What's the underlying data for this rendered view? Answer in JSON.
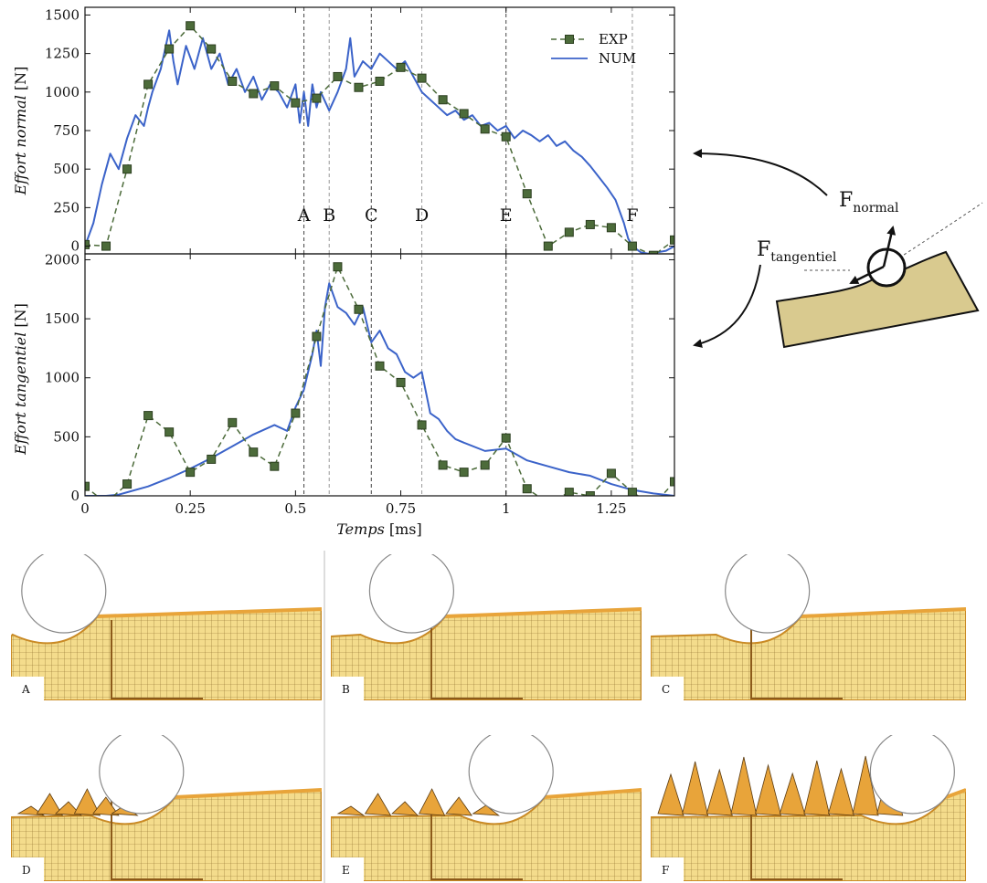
{
  "chart_data": [
    {
      "type": "line",
      "xlabel": "Temps",
      "xunit": "[ms]",
      "ylabel": "Effort normal",
      "yunit": "[N]",
      "xlim": [
        0,
        1.4
      ],
      "ylim": [
        -50,
        1550
      ],
      "xticks": [
        0,
        0.25,
        0.5,
        0.75,
        1,
        1.25
      ],
      "xtick_labels": [
        "0",
        "0.25",
        "0.5",
        "0.75",
        "1",
        "1.25"
      ],
      "yticks": [
        0,
        250,
        500,
        750,
        1000,
        1250,
        1500
      ],
      "ytick_labels": [
        "0",
        "250",
        "500",
        "750",
        "1000",
        "1250",
        "1500"
      ],
      "legend_position": "top-right",
      "grid": false,
      "markers": [
        {
          "label": "A",
          "x": 0.52
        },
        {
          "label": "B",
          "x": 0.58
        },
        {
          "label": "C",
          "x": 0.68
        },
        {
          "label": "D",
          "x": 0.8
        },
        {
          "label": "E",
          "x": 1.0
        },
        {
          "label": "F",
          "x": 1.3
        }
      ],
      "series": [
        {
          "name": "EXP",
          "style": "dashed-square",
          "x": [
            0,
            0.05,
            0.1,
            0.15,
            0.2,
            0.25,
            0.3,
            0.35,
            0.4,
            0.45,
            0.5,
            0.55,
            0.6,
            0.65,
            0.7,
            0.75,
            0.8,
            0.85,
            0.9,
            0.95,
            1.0,
            1.05,
            1.1,
            1.15,
            1.2,
            1.25,
            1.3,
            1.35,
            1.4
          ],
          "y": [
            10,
            0,
            500,
            1050,
            1280,
            1430,
            1280,
            1070,
            990,
            1040,
            930,
            960,
            1100,
            1030,
            1070,
            1160,
            1090,
            950,
            860,
            760,
            710,
            340,
            0,
            90,
            140,
            120,
            0,
            -60,
            40
          ]
        },
        {
          "name": "NUM",
          "style": "solid",
          "x": [
            0,
            0.02,
            0.04,
            0.06,
            0.08,
            0.1,
            0.12,
            0.14,
            0.15,
            0.16,
            0.18,
            0.2,
            0.21,
            0.22,
            0.24,
            0.26,
            0.28,
            0.3,
            0.32,
            0.34,
            0.36,
            0.38,
            0.4,
            0.42,
            0.44,
            0.46,
            0.48,
            0.5,
            0.51,
            0.52,
            0.53,
            0.54,
            0.55,
            0.56,
            0.58,
            0.6,
            0.62,
            0.63,
            0.64,
            0.66,
            0.68,
            0.7,
            0.72,
            0.74,
            0.76,
            0.78,
            0.8,
            0.82,
            0.84,
            0.86,
            0.88,
            0.9,
            0.92,
            0.94,
            0.96,
            0.98,
            1.0,
            1.02,
            1.04,
            1.06,
            1.08,
            1.1,
            1.12,
            1.14,
            1.16,
            1.18,
            1.2,
            1.22,
            1.24,
            1.26,
            1.28,
            1.29,
            1.3,
            1.32,
            1.34,
            1.36,
            1.38,
            1.4
          ],
          "y": [
            0,
            150,
            400,
            600,
            500,
            700,
            850,
            780,
            900,
            1000,
            1150,
            1400,
            1200,
            1050,
            1300,
            1150,
            1350,
            1150,
            1250,
            1050,
            1150,
            1000,
            1100,
            950,
            1050,
            1000,
            900,
            1050,
            800,
            1000,
            780,
            1050,
            900,
            1000,
            880,
            1000,
            1150,
            1350,
            1100,
            1200,
            1150,
            1250,
            1200,
            1150,
            1200,
            1100,
            1000,
            950,
            900,
            850,
            880,
            820,
            850,
            780,
            800,
            750,
            780,
            700,
            750,
            720,
            680,
            720,
            650,
            680,
            620,
            580,
            520,
            450,
            380,
            300,
            150,
            50,
            0,
            -40,
            -50,
            -40,
            -30,
            0
          ]
        }
      ]
    },
    {
      "type": "line",
      "xlabel": "Temps",
      "xunit": "[ms]",
      "ylabel": "Effort tangentiel",
      "yunit": "[N]",
      "xlim": [
        0,
        1.4
      ],
      "ylim": [
        0,
        2050
      ],
      "xticks": [
        0,
        0.25,
        0.5,
        0.75,
        1,
        1.25
      ],
      "xtick_labels": [
        "0",
        "0.25",
        "0.5",
        "0.75",
        "1",
        "1.25"
      ],
      "yticks": [
        0,
        500,
        1000,
        1500,
        2000
      ],
      "ytick_labels": [
        "0",
        "500",
        "1000",
        "1500",
        "2000"
      ],
      "grid": false,
      "series": [
        {
          "name": "EXP",
          "style": "dashed-square",
          "x": [
            0,
            0.05,
            0.1,
            0.15,
            0.2,
            0.25,
            0.3,
            0.35,
            0.4,
            0.45,
            0.5,
            0.55,
            0.6,
            0.65,
            0.7,
            0.75,
            0.8,
            0.85,
            0.9,
            0.95,
            1.0,
            1.05,
            1.1,
            1.15,
            1.2,
            1.25,
            1.3,
            1.35,
            1.4
          ],
          "y": [
            80,
            -60,
            100,
            680,
            540,
            200,
            310,
            620,
            370,
            250,
            700,
            1350,
            1940,
            1580,
            1100,
            960,
            600,
            260,
            200,
            260,
            490,
            60,
            -60,
            30,
            0,
            190,
            30,
            -80,
            120
          ]
        },
        {
          "name": "NUM",
          "style": "solid",
          "x": [
            0,
            0.05,
            0.08,
            0.1,
            0.15,
            0.2,
            0.25,
            0.3,
            0.35,
            0.4,
            0.45,
            0.48,
            0.5,
            0.52,
            0.54,
            0.55,
            0.56,
            0.57,
            0.58,
            0.6,
            0.62,
            0.64,
            0.66,
            0.68,
            0.7,
            0.72,
            0.74,
            0.76,
            0.78,
            0.8,
            0.82,
            0.84,
            0.86,
            0.88,
            0.9,
            0.95,
            1.0,
            1.05,
            1.1,
            1.15,
            1.2,
            1.25,
            1.3,
            1.35,
            1.4
          ],
          "y": [
            0,
            0,
            10,
            30,
            80,
            150,
            230,
            320,
            420,
            520,
            600,
            550,
            750,
            900,
            1200,
            1400,
            1100,
            1600,
            1800,
            1600,
            1550,
            1450,
            1600,
            1300,
            1400,
            1250,
            1200,
            1050,
            1000,
            1050,
            700,
            650,
            550,
            480,
            450,
            380,
            400,
            300,
            250,
            200,
            170,
            100,
            50,
            20,
            0
          ]
        }
      ]
    }
  ],
  "figure": {
    "force_normal": {
      "main": "F",
      "sub": "normal"
    },
    "force_tangent": {
      "main": "F",
      "sub": "tangentiel"
    },
    "colors": {
      "exp": "#4c6b3a",
      "exp_edge": "#2c3f20",
      "num": "#3b63c9",
      "mesh": "#f4dc8c",
      "mesh_dark": "#e8a43a",
      "sketch": "#d9ca8f"
    },
    "snapshots": [
      {
        "label": "A",
        "ball_x": 0.17
      },
      {
        "label": "B",
        "ball_x": 0.26
      },
      {
        "label": "C",
        "ball_x": 0.37
      },
      {
        "label": "D",
        "ball_x": 0.42
      },
      {
        "label": "E",
        "ball_x": 0.58
      },
      {
        "label": "F",
        "ball_x": 0.83
      }
    ]
  }
}
